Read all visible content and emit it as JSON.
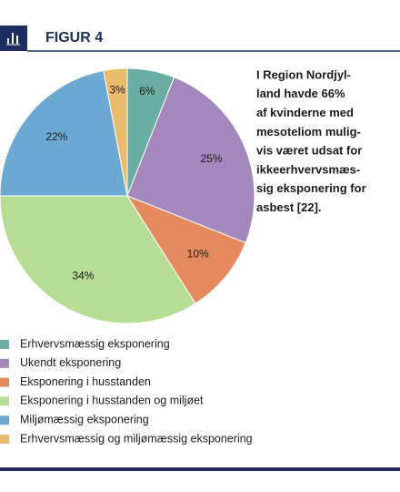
{
  "header": {
    "label": "FIGUR 4"
  },
  "chart_data": {
    "type": "pie",
    "categories": [
      "Erhvervsmæssig eksponering",
      "Ukendt eksponering",
      "Eksponering i husstanden",
      "Eksponering i husstanden og miljøet",
      "Miljømæssig eksponering",
      "Erhvervsmæssig og miljømæssig eksponering"
    ],
    "values": [
      6,
      25,
      10,
      34,
      22,
      3
    ],
    "value_labels": [
      "6%",
      "25%",
      "10%",
      "34%",
      "22%",
      "3%"
    ],
    "colors": [
      "#6aaea3",
      "#a487bd",
      "#e48a5e",
      "#b7dc93",
      "#6ba9d2",
      "#ebbb6d"
    ],
    "annotation": [
      "I Region Nordjyl-",
      "land havde 66%",
      "af kvinderne med",
      "mesoteliom mulig-",
      "vis været udsat for",
      "ikkeerhvervsmæs-",
      "sig eksponering for",
      "asbest [22]."
    ]
  }
}
